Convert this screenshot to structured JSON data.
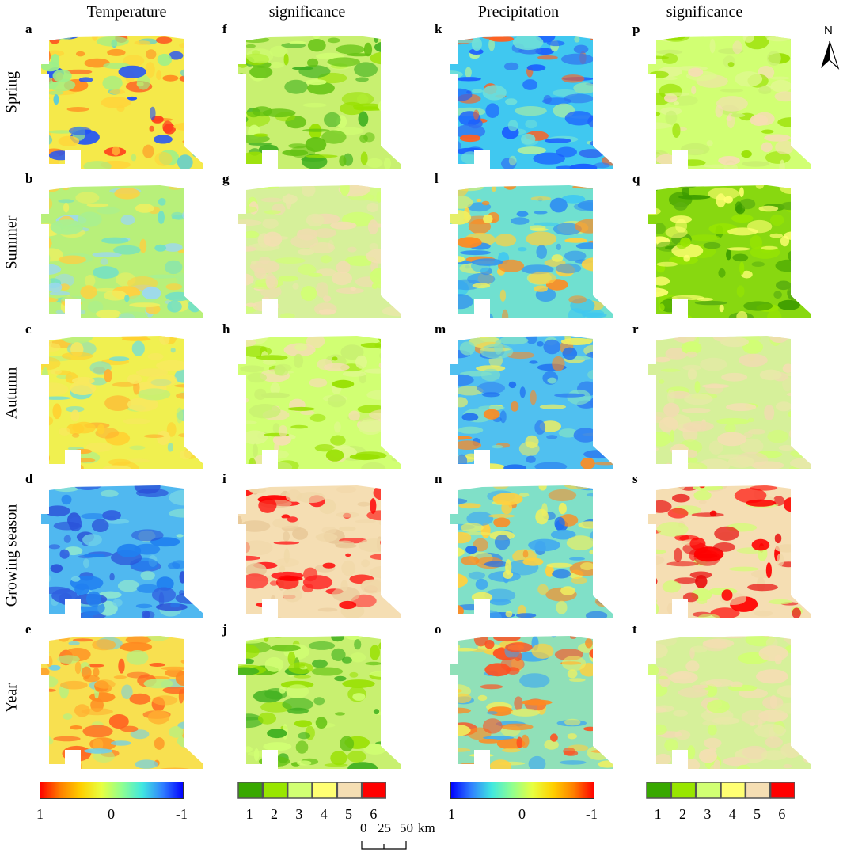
{
  "columns": [
    "Temperature",
    "significance",
    "Precipitation",
    "significance"
  ],
  "rows": [
    "Spring",
    "Summer",
    "Autumn",
    "Growing season",
    "Year"
  ],
  "panel_letters": [
    [
      "a",
      "f",
      "k",
      "p"
    ],
    [
      "b",
      "g",
      "l",
      "q"
    ],
    [
      "c",
      "h",
      "m",
      "r"
    ],
    [
      "d",
      "i",
      "n",
      "s"
    ],
    [
      "e",
      "j",
      "o",
      "t"
    ]
  ],
  "panel_schemes": [
    [
      "temp_warm",
      "sig_green",
      "prec_blue",
      "sig_light"
    ],
    [
      "temp_mid",
      "sig_beige",
      "prec_mix",
      "sig_darkgreen"
    ],
    [
      "temp_yellow",
      "sig_light",
      "prec_blue2",
      "sig_beige"
    ],
    [
      "temp_cool",
      "sig_beige_red",
      "prec_mix2",
      "sig_beige_red2"
    ],
    [
      "temp_warm2",
      "sig_green",
      "prec_mix3",
      "sig_beige"
    ]
  ],
  "north_arrow_label": "N",
  "legends": {
    "temperature": {
      "left": "1",
      "mid": "0",
      "right": "-1",
      "colors": [
        "#ff0000",
        "#ff8000",
        "#ffd000",
        "#e8ff40",
        "#90ff90",
        "#40e8e0",
        "#3080ff",
        "#0000ff"
      ]
    },
    "significance": {
      "labels": [
        "1",
        "2",
        "3",
        "4",
        "5",
        "6"
      ],
      "colors": [
        "#38a800",
        "#98e600",
        "#d1ff73",
        "#ffff73",
        "#f5deb3",
        "#ff0000"
      ]
    },
    "precipitation": {
      "left": "1",
      "mid": "0",
      "right": "-1",
      "colors": [
        "#0000ff",
        "#3080ff",
        "#40e8e0",
        "#90ff90",
        "#e8ff40",
        "#ffd000",
        "#ff8000",
        "#ff0000"
      ]
    }
  },
  "scale_bar": {
    "labels": [
      "0",
      "25",
      "50"
    ],
    "unit": "km"
  }
}
